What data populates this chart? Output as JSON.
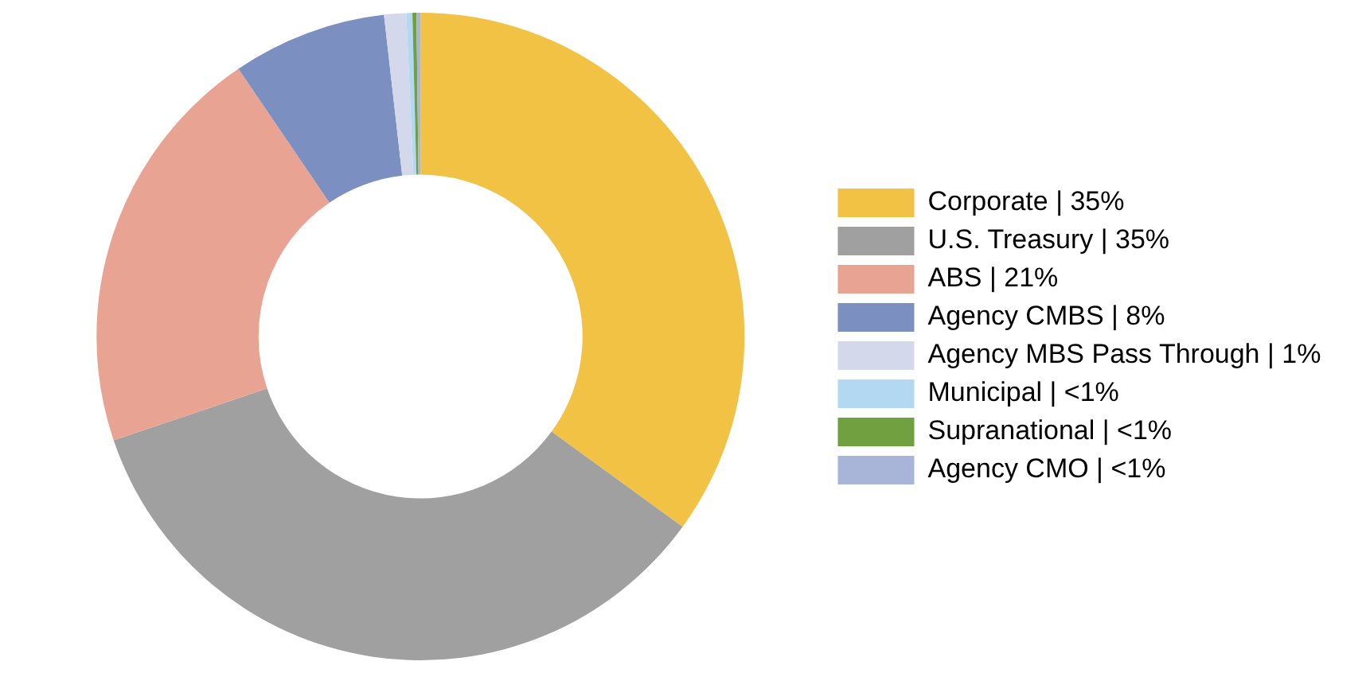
{
  "chart_data": {
    "type": "donut",
    "categories": [
      "Corporate | 35%",
      "U.S. Treasury | 35%",
      "ABS | 21%",
      "Agency CMBS | 8%",
      "Agency MBS Pass Through | 1%",
      "Municipal | <1%",
      "Supranational | <1%",
      "Agency CMO | <1%"
    ],
    "values": [
      35,
      34.8,
      20.7,
      7.7,
      1.1,
      0.3,
      0.2,
      0.2
    ],
    "colors": [
      "#f2c244",
      "#a0a0a0",
      "#e8a392",
      "#7b90c0",
      "#d3d9ea",
      "#b3d9f2",
      "#70a040",
      "#a8b4d8"
    ],
    "legend": "right"
  }
}
